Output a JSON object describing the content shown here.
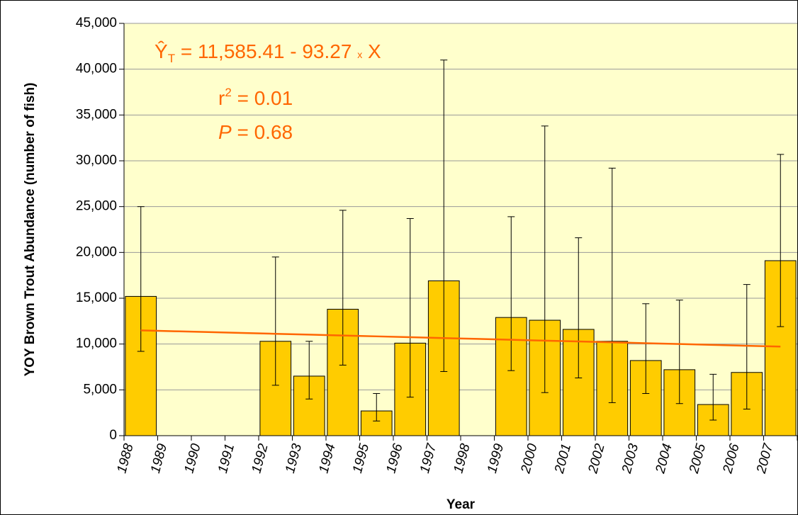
{
  "chart_data": {
    "type": "bar",
    "x_label": "Year",
    "y_label": "YOY Brown Trout Abundance (number of fish)",
    "categories": [
      "1988",
      "1989",
      "1990",
      "1991",
      "1992",
      "1993",
      "1994",
      "1995",
      "1996",
      "1997",
      "1998",
      "1999",
      "2000",
      "2001",
      "2002",
      "2003",
      "2004",
      "2005",
      "2006",
      "2007"
    ],
    "values": [
      15200,
      null,
      null,
      null,
      10300,
      6500,
      13800,
      2700,
      10100,
      16900,
      null,
      12900,
      12600,
      11600,
      10300,
      8200,
      7200,
      3400,
      6900,
      19100
    ],
    "error_lower": [
      9200,
      null,
      null,
      null,
      5500,
      4000,
      7700,
      1600,
      4200,
      7000,
      null,
      7100,
      4700,
      6300,
      3600,
      4600,
      3500,
      1700,
      2900,
      11900
    ],
    "error_upper": [
      25000,
      null,
      null,
      null,
      19500,
      10300,
      24600,
      4600,
      23700,
      41000,
      null,
      23900,
      33800,
      21600,
      29200,
      14400,
      14800,
      6700,
      16500,
      30700
    ],
    "color": "#FFCC00",
    "trend_line": {
      "color": "#FF6600",
      "values": [
        11492.14,
        11398.87,
        11305.6,
        11212.33,
        11119.06,
        11025.79,
        10932.52,
        10839.25,
        10745.98,
        10652.71,
        10559.44,
        10466.17,
        10372.9,
        10279.63,
        10186.36,
        10093.09,
        9999.82,
        9906.55,
        9813.28,
        9720.01
      ]
    },
    "annotations": {
      "equation": {
        "y_hat": "Ŷ",
        "subscript": "T",
        "text": " = 11,585.41 - 93.27 ",
        "times": "x",
        "x": " X"
      },
      "r_squared": {
        "r": "r",
        "superscript": "2",
        "text": " = 0.01"
      },
      "p_value": {
        "p": "P",
        "text": " = 0.68"
      }
    },
    "ylim": [
      0,
      45000
    ],
    "yticks": [
      0,
      {
        "value": 5000,
        "label": "5,000"
      },
      {
        "value": 10000,
        "label": "10,000"
      },
      {
        "value": 15000,
        "label": "15,000"
      },
      {
        "value": 20000,
        "label": "20,000"
      },
      {
        "value": 25000,
        "label": "25,000"
      },
      {
        "value": 30000,
        "label": "30,000"
      },
      {
        "value": 35000,
        "label": "35,000"
      },
      {
        "value": 40000,
        "label": "40,000"
      },
      {
        "value": 45000,
        "label": "45,000"
      }
    ],
    "grid": true
  }
}
